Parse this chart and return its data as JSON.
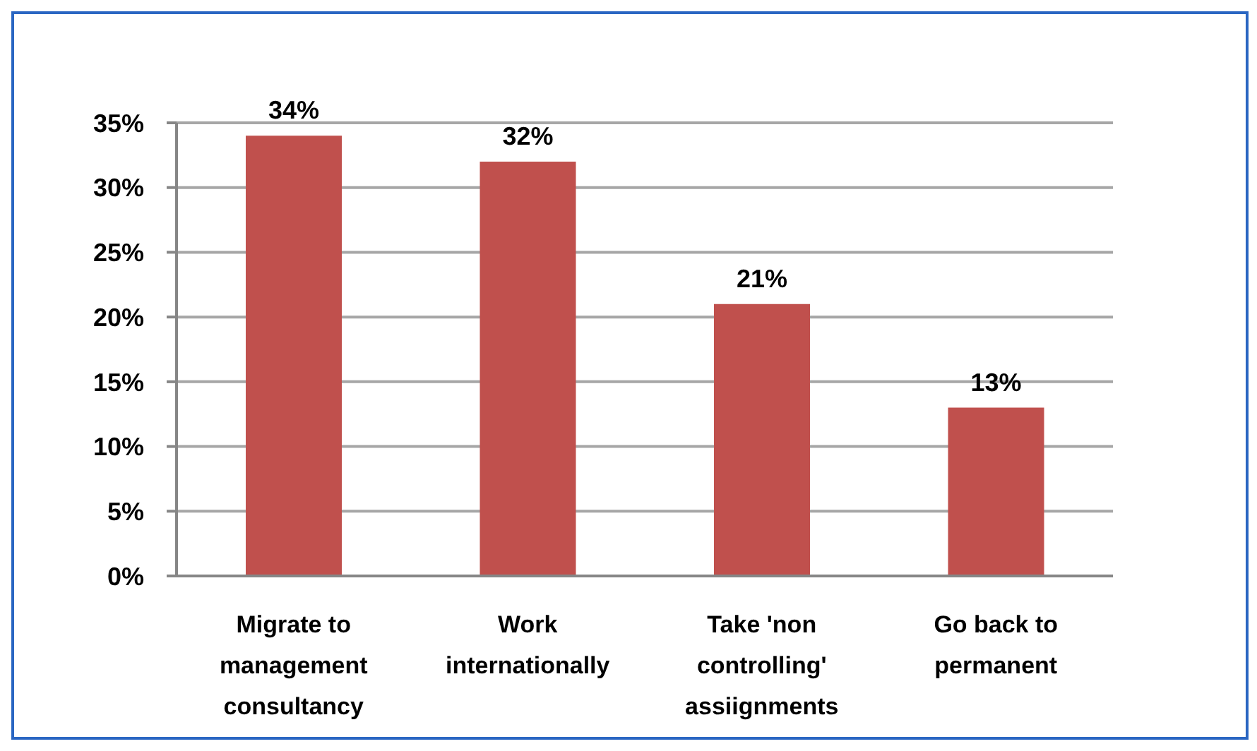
{
  "chart_data": {
    "type": "bar",
    "categories": [
      "Migrate to management consultancy",
      "Work internationally",
      "Take 'non controlling' assiignments",
      "Go back to permanent"
    ],
    "values": [
      34,
      32,
      21,
      13
    ],
    "color": "#c0504d",
    "value_labels": [
      "34%",
      "32%",
      "21%",
      "13%"
    ],
    "ylim": [
      0,
      35
    ],
    "yticks": [
      {
        "value": 0,
        "label": "0%"
      },
      {
        "value": 5,
        "label": "5%"
      },
      {
        "value": 10,
        "label": "10%"
      },
      {
        "value": 15,
        "label": "15%"
      },
      {
        "value": 20,
        "label": "20%"
      },
      {
        "value": 25,
        "label": "25%"
      },
      {
        "value": 30,
        "label": "30%"
      },
      {
        "value": 35,
        "label": "35%"
      }
    ],
    "grid": "y"
  }
}
